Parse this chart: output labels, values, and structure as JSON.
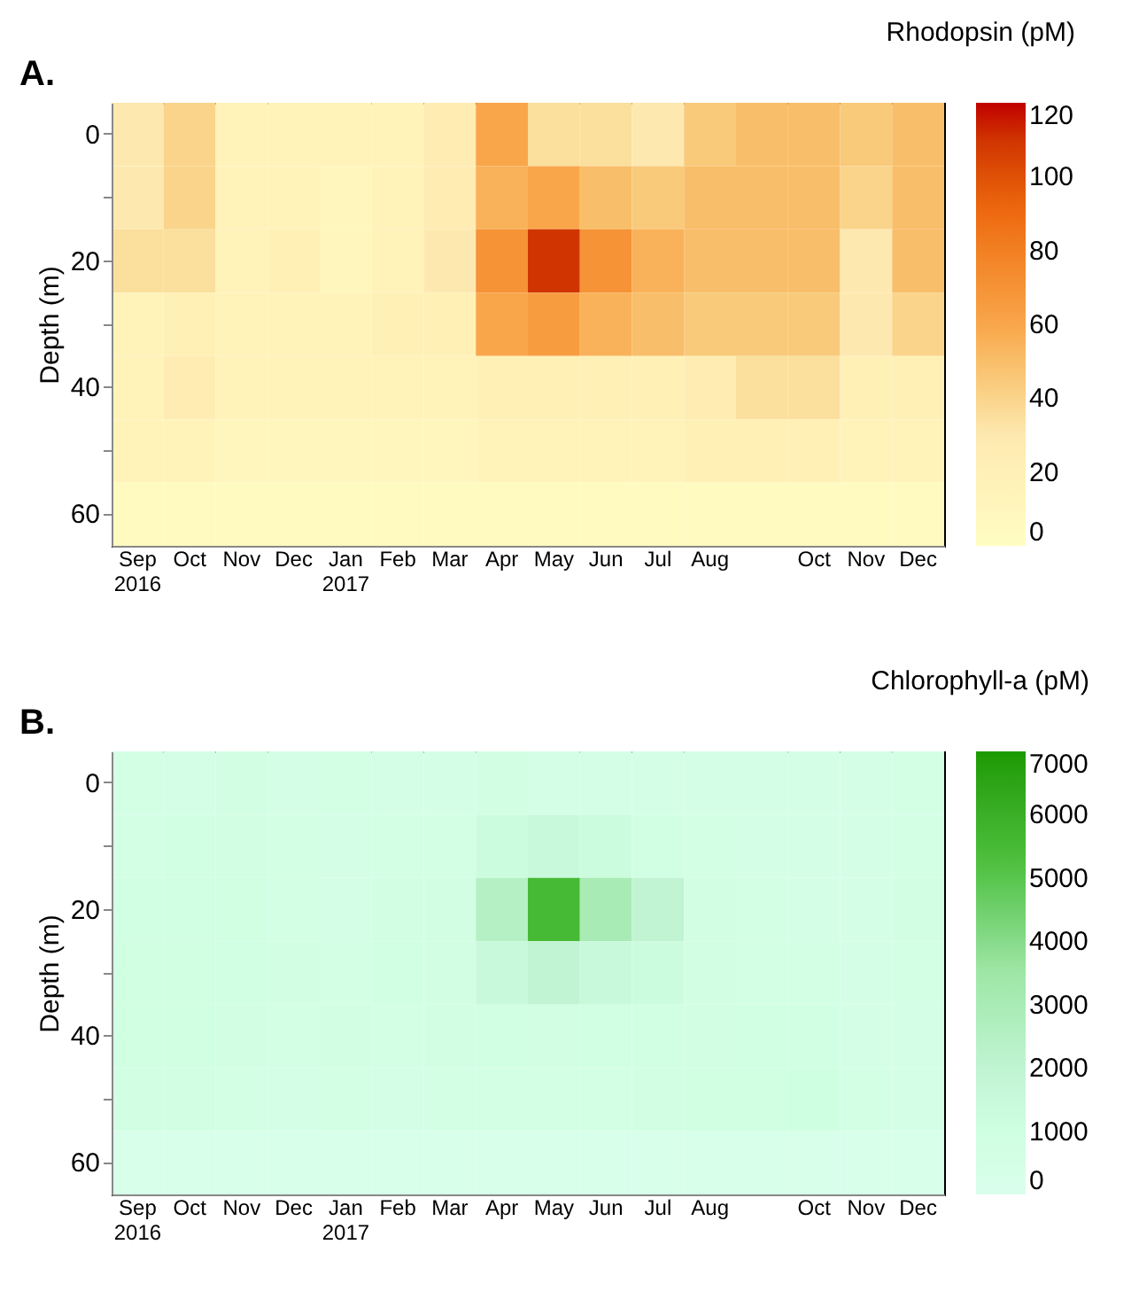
{
  "chart_data": [
    {
      "type": "heatmap",
      "annotations": [
        "A."
      ],
      "clabel": "Rhodopsin (pM)",
      "ylabel": "Depth (m)",
      "categories": [
        "Sep 2016",
        "Oct",
        "Nov",
        "Dec",
        "Jan 2017",
        "Feb",
        "Mar",
        "Apr",
        "May",
        "Jun",
        "Jul",
        "Aug",
        null,
        "Oct",
        "Nov",
        "Dec"
      ],
      "y_categories": [
        "0",
        null,
        "20",
        null,
        "40",
        null,
        "60"
      ],
      "cells": [
        [
          30,
          40,
          15,
          15,
          15,
          15,
          25,
          60,
          35,
          35,
          30,
          45,
          50,
          50,
          45,
          50
        ],
        [
          30,
          40,
          15,
          15,
          10,
          15,
          25,
          55,
          60,
          50,
          45,
          50,
          50,
          50,
          40,
          50
        ],
        [
          35,
          35,
          15,
          20,
          10,
          15,
          30,
          70,
          110,
          70,
          55,
          50,
          50,
          50,
          30,
          50
        ],
        [
          15,
          20,
          15,
          15,
          15,
          20,
          20,
          60,
          65,
          55,
          50,
          45,
          45,
          45,
          30,
          40
        ],
        [
          15,
          25,
          15,
          15,
          15,
          15,
          15,
          20,
          20,
          20,
          20,
          25,
          35,
          35,
          20,
          20
        ],
        [
          15,
          15,
          10,
          10,
          10,
          10,
          10,
          15,
          15,
          15,
          15,
          20,
          20,
          20,
          15,
          15
        ],
        [
          5,
          5,
          5,
          5,
          5,
          5,
          5,
          5,
          5,
          5,
          5,
          5,
          5,
          5,
          5,
          5
        ]
      ],
      "clim": [
        0,
        120
      ],
      "cticks": [
        0,
        20,
        40,
        60,
        80,
        100,
        120
      ]
    },
    {
      "type": "heatmap",
      "annotations": [
        "B."
      ],
      "clabel": "Chlorophyll-a (pM)",
      "ylabel": "Depth (m)",
      "categories": [
        "Sep 2016",
        "Oct",
        "Nov",
        "Dec",
        "Jan 2017",
        "Feb",
        "Mar",
        "Apr",
        "May",
        "Jun",
        "Jul",
        "Aug",
        null,
        "Oct",
        "Nov",
        "Dec"
      ],
      "y_categories": [
        "0",
        null,
        "20",
        null,
        "40",
        null,
        "60"
      ],
      "cells": [
        [
          600,
          500,
          700,
          500,
          600,
          500,
          500,
          700,
          500,
          500,
          500,
          500,
          500,
          500,
          500,
          600
        ],
        [
          600,
          800,
          700,
          600,
          500,
          600,
          600,
          1200,
          1500,
          1200,
          800,
          600,
          500,
          500,
          500,
          600
        ],
        [
          800,
          800,
          900,
          600,
          500,
          700,
          700,
          2500,
          5500,
          3000,
          2000,
          700,
          600,
          500,
          500,
          700
        ],
        [
          900,
          900,
          800,
          700,
          600,
          800,
          700,
          1500,
          2000,
          1500,
          1200,
          700,
          600,
          600,
          500,
          600
        ],
        [
          900,
          900,
          700,
          600,
          700,
          600,
          700,
          800,
          700,
          800,
          800,
          700,
          800,
          800,
          500,
          500
        ],
        [
          700,
          700,
          600,
          500,
          600,
          500,
          600,
          600,
          600,
          600,
          700,
          900,
          900,
          1000,
          600,
          500
        ],
        [
          300,
          300,
          300,
          300,
          300,
          300,
          300,
          300,
          300,
          300,
          300,
          300,
          300,
          300,
          300,
          300
        ]
      ],
      "clim": [
        0,
        7000
      ],
      "cticks": [
        0,
        1000,
        2000,
        3000,
        4000,
        5000,
        6000,
        7000
      ]
    }
  ]
}
